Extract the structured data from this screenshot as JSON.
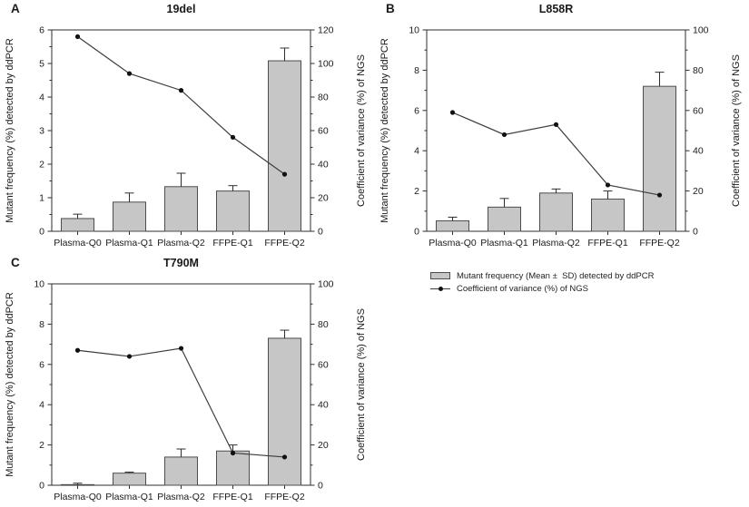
{
  "panels": [
    {
      "letter": "A",
      "title": "19del"
    },
    {
      "letter": "B",
      "title": "L858R"
    },
    {
      "letter": "C",
      "title": "T790M"
    }
  ],
  "legend": {
    "items": [
      {
        "swatch": "bar",
        "label": "Mutant frequency (Mean ±  SD) detected by ddPCR"
      },
      {
        "swatch": "line",
        "label": "Coefficient of variance (%) of NGS"
      }
    ]
  },
  "colors": {
    "background": "#ffffff",
    "bar_fill": "#c6c6c6",
    "bar_stroke": "#4d4d4d",
    "error_bar": "#2e2e2e",
    "line": "#3d3d3d",
    "marker": "#111111",
    "frame": "#2e2e2e",
    "text": "#1a1a1a"
  },
  "chart_data": [
    {
      "type": "bar+line",
      "panel": "A",
      "title": "19del",
      "grid": false,
      "legend_position": "bottom-right-of-figure",
      "categories": [
        "Plasma-Q0",
        "Plasma-Q1",
        "Plasma-Q2",
        "FFPE-Q1",
        "FFPE-Q2"
      ],
      "left_axis": {
        "label": "Mutant frequency (%) detected by ddPCR",
        "lim": [
          0,
          6
        ],
        "ticks": [
          0,
          1,
          2,
          3,
          4,
          5,
          6
        ]
      },
      "right_axis": {
        "label": "Coefficient of variance (%) of NGS",
        "lim": [
          0,
          120
        ],
        "ticks": [
          0,
          20,
          40,
          60,
          80,
          100,
          120
        ]
      },
      "series": [
        {
          "name": "Mutant frequency (Mean ± SD) detected by ddPCR",
          "type": "bar",
          "axis": "left",
          "values": [
            0.38,
            0.87,
            1.33,
            1.2,
            5.08
          ],
          "errors": [
            0.13,
            0.27,
            0.4,
            0.16,
            0.38
          ]
        },
        {
          "name": "Coefficient of variance (%) of NGS",
          "type": "line",
          "axis": "right",
          "values": [
            116,
            94,
            84,
            56,
            34
          ]
        }
      ]
    },
    {
      "type": "bar+line",
      "panel": "B",
      "title": "L858R",
      "grid": false,
      "legend_position": "bottom-right-of-figure",
      "categories": [
        "Plasma-Q0",
        "Plasma-Q1",
        "Plasma-Q2",
        "FFPE-Q1",
        "FFPE-Q2"
      ],
      "left_axis": {
        "label": "Mutant frequency (%) detected by ddPCR",
        "lim": [
          0,
          10
        ],
        "ticks": [
          0,
          2,
          4,
          6,
          8,
          10
        ]
      },
      "right_axis": {
        "label": "Coefficient of variance (%) of NGS",
        "lim": [
          0,
          100
        ],
        "ticks": [
          0,
          20,
          40,
          60,
          80,
          100
        ]
      },
      "series": [
        {
          "name": "Mutant frequency (Mean ± SD) detected by ddPCR",
          "type": "bar",
          "axis": "left",
          "values": [
            0.52,
            1.2,
            1.9,
            1.6,
            7.2
          ],
          "errors": [
            0.18,
            0.43,
            0.2,
            0.4,
            0.7
          ]
        },
        {
          "name": "Coefficient of variance (%) of NGS",
          "type": "line",
          "axis": "right",
          "values": [
            59,
            48,
            53,
            23,
            18
          ]
        }
      ]
    },
    {
      "type": "bar+line",
      "panel": "C",
      "title": "T790M",
      "grid": false,
      "legend_position": "bottom-right-of-figure",
      "categories": [
        "Plasma-Q0",
        "Plasma-Q1",
        "Plasma-Q2",
        "FFPE-Q1",
        "FFPE-Q2"
      ],
      "left_axis": {
        "label": "Mutant frequency (%) detected by ddPCR",
        "lim": [
          0,
          10
        ],
        "ticks": [
          0,
          2,
          4,
          6,
          8,
          10
        ]
      },
      "right_axis": {
        "label": "Coefficient of variance (%) of NGS",
        "lim": [
          0,
          100
        ],
        "ticks": [
          0,
          20,
          40,
          60,
          80,
          100
        ]
      },
      "series": [
        {
          "name": "Mutant frequency (Mean ± SD) detected by ddPCR",
          "type": "bar",
          "axis": "left",
          "values": [
            0.03,
            0.6,
            1.4,
            1.7,
            7.3
          ],
          "errors": [
            0.07,
            0.05,
            0.4,
            0.3,
            0.4
          ]
        },
        {
          "name": "Coefficient of variance (%) of NGS",
          "type": "line",
          "axis": "right",
          "values": [
            67,
            64,
            68,
            16,
            14
          ]
        }
      ]
    }
  ]
}
